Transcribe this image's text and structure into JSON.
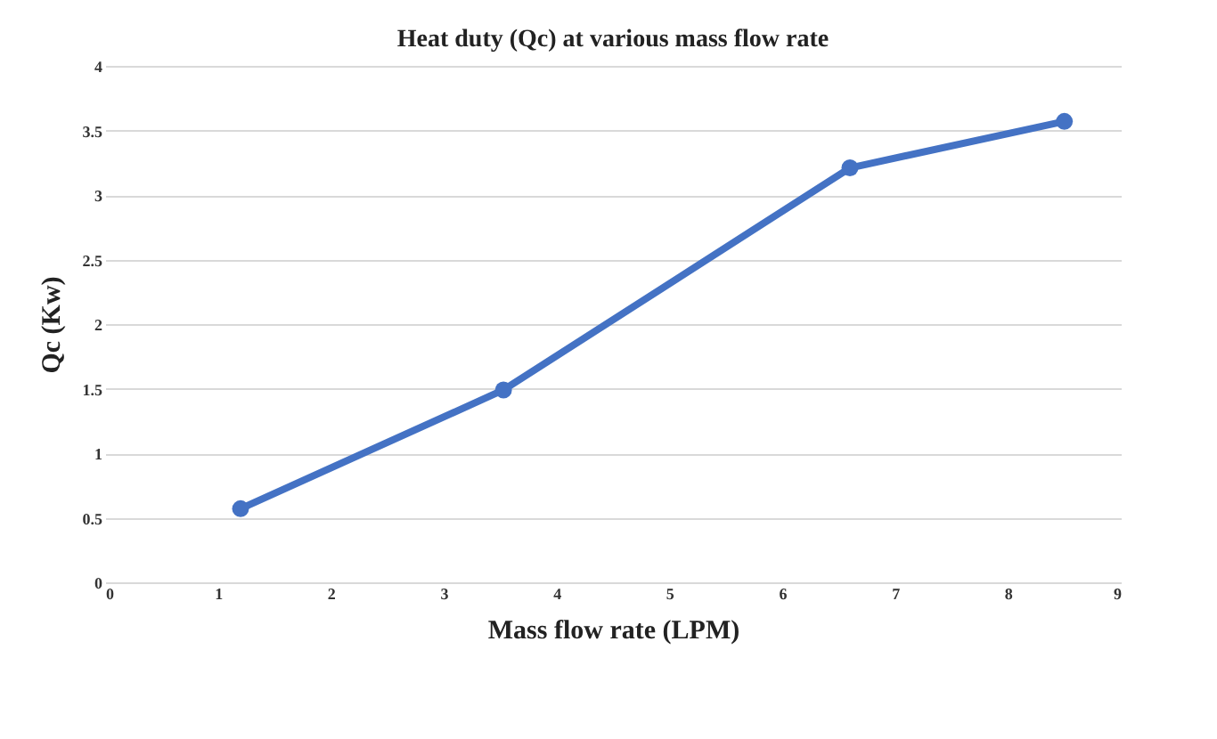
{
  "chart_data": {
    "type": "line",
    "title": "Heat duty (Qc) at various mass flow rate",
    "xlabel": "Mass flow rate (LPM)",
    "ylabel": "Qc (Kw)",
    "x": [
      1.2,
      3.53,
      6.6,
      8.5
    ],
    "series": [
      {
        "color": "#4472c4",
        "values": [
          0.57,
          1.49,
          3.21,
          3.57
        ]
      }
    ],
    "xlim": [
      0,
      9
    ],
    "xticks": [
      0,
      1,
      2,
      3,
      4,
      5,
      6,
      7,
      8,
      9
    ],
    "ylim": [
      0,
      4
    ],
    "yticks": [
      0,
      0.5,
      1,
      1.5,
      2,
      2.5,
      3,
      3.5,
      4
    ],
    "grid": "y",
    "marker": "circle",
    "line_style": "solid"
  }
}
